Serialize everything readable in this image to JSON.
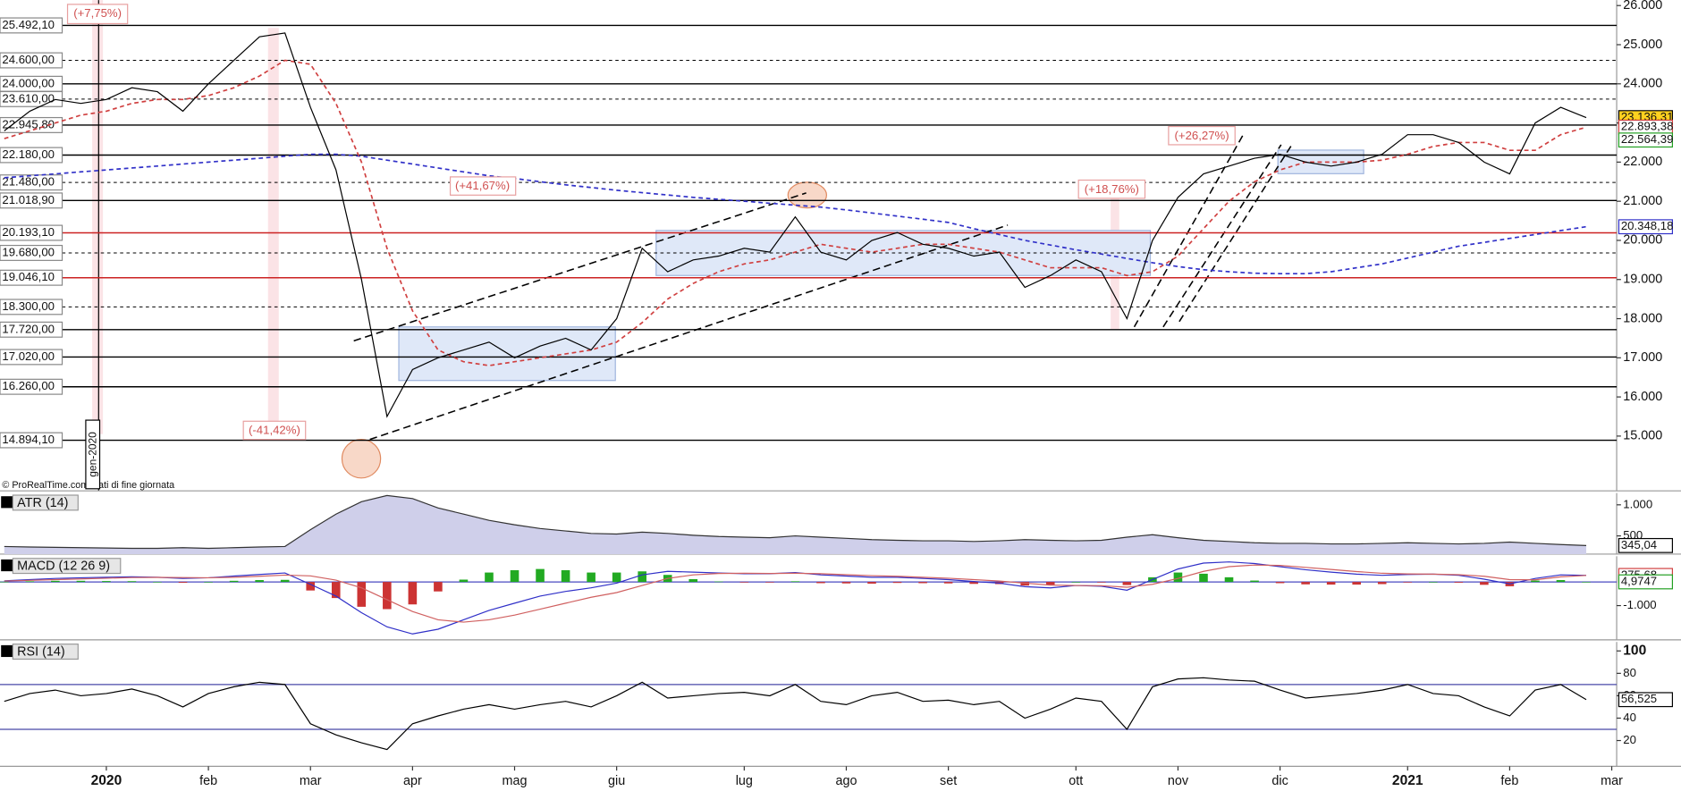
{
  "chart_data": [
    {
      "type": "line",
      "categories": [
        null,
        null,
        null,
        null,
        "2020",
        null,
        null,
        null,
        "feb",
        null,
        null,
        null,
        "mar",
        null,
        null,
        null,
        "apr",
        null,
        null,
        null,
        "mag",
        null,
        null,
        null,
        "giu",
        null,
        null,
        null,
        null,
        "lug",
        null,
        null,
        null,
        "ago",
        null,
        null,
        null,
        "set",
        null,
        null,
        null,
        null,
        "ott",
        null,
        null,
        null,
        "nov",
        null,
        null,
        null,
        "dic",
        null,
        null,
        null,
        null,
        "2021",
        null,
        null,
        null,
        "feb",
        null,
        null,
        null,
        "mar"
      ],
      "ylim": [
        13600,
        26140
      ],
      "yticks": [
        {
          "value": 26000,
          "label": "26.000"
        },
        {
          "value": 25000,
          "label": "25.000"
        },
        {
          "value": 24000,
          "label": "24.000"
        },
        {
          "value": 23000,
          "label": "23.000"
        },
        {
          "value": 22000,
          "label": "22.000"
        },
        {
          "value": 21000,
          "label": "21.000"
        },
        {
          "value": 20000,
          "label": "20.000"
        },
        {
          "value": 19000,
          "label": "19.000"
        },
        {
          "value": 18000,
          "label": "18.000"
        },
        {
          "value": 17000,
          "label": "17.000"
        },
        {
          "value": 16000,
          "label": "16.000"
        },
        {
          "value": 15000,
          "label": "15.000"
        }
      ],
      "levels": [
        {
          "value": 25492.1,
          "label": "25.492,10",
          "color": "#000000",
          "style": "solid"
        },
        {
          "value": 24600,
          "label": "24.600,00",
          "color": "#000000",
          "style": "dashed"
        },
        {
          "value": 24000,
          "label": "24.000,00",
          "color": "#000000",
          "style": "solid"
        },
        {
          "value": 23610,
          "label": "23.610,00",
          "color": "#000000",
          "style": "dashed"
        },
        {
          "value": 22945.8,
          "label": "22.945,80",
          "color": "#000000",
          "style": "solid"
        },
        {
          "value": 22180,
          "label": "22.180,00",
          "color": "#000000",
          "style": "solid"
        },
        {
          "value": 21480,
          "label": "21.480,00",
          "color": "#000000",
          "style": "dashed"
        },
        {
          "value": 21018.9,
          "label": "21.018,90",
          "color": "#000000",
          "style": "solid"
        },
        {
          "value": 20193.1,
          "label": "20.193,10",
          "color": "#cc2222",
          "style": "solid"
        },
        {
          "value": 19680,
          "label": "19.680,00",
          "color": "#000000",
          "style": "dashed"
        },
        {
          "value": 19046.1,
          "label": "19.046,10",
          "color": "#cc2222",
          "style": "solid"
        },
        {
          "value": 18300,
          "label": "18.300,00",
          "color": "#000000",
          "style": "dashed"
        },
        {
          "value": 17720,
          "label": "17.720,00",
          "color": "#000000",
          "style": "solid"
        },
        {
          "value": 17020,
          "label": "17.020,00",
          "color": "#000000",
          "style": "solid"
        },
        {
          "value": 16260,
          "label": "16.260,00",
          "color": "#000000",
          "style": "solid"
        },
        {
          "value": 14894.1,
          "label": "14.894,10",
          "color": "#000000",
          "style": "solid"
        }
      ],
      "series": [
        {
          "color": "#3030c8",
          "style": "dashed",
          "values": [
            21600,
            21650,
            21700,
            21750,
            21800,
            21850,
            21900,
            21950,
            22000,
            22050,
            22100,
            22150,
            22200,
            22200,
            22150,
            22050,
            21950,
            21850,
            21750,
            21650,
            21580,
            21500,
            21420,
            21350,
            21280,
            21220,
            21160,
            21100,
            21050,
            21000,
            20950,
            20900,
            20850,
            20780,
            20700,
            20620,
            20540,
            20460,
            20300,
            20150,
            20000,
            19880,
            19760,
            19650,
            19540,
            19430,
            19330,
            19250,
            19200,
            19160,
            19150,
            19150,
            19200,
            19300,
            19400,
            19550,
            19700,
            19850,
            19950,
            20050,
            20150,
            20250,
            20348,
            null
          ]
        },
        {
          "color": "#d04040",
          "style": "dashed",
          "values": [
            22600,
            22800,
            23000,
            23200,
            23300,
            23500,
            23600,
            23600,
            23700,
            23900,
            24200,
            24600,
            24500,
            23500,
            22000,
            19800,
            18200,
            17200,
            16900,
            16800,
            16900,
            17000,
            17100,
            17200,
            17400,
            17900,
            18500,
            18900,
            19200,
            19400,
            19500,
            19700,
            19900,
            19800,
            19700,
            19800,
            19900,
            19900,
            19800,
            19700,
            19500,
            19300,
            19300,
            19300,
            19100,
            19200,
            19600,
            20300,
            21000,
            21500,
            21800,
            22000,
            22000,
            22000,
            22050,
            22200,
            22400,
            22500,
            22500,
            22300,
            22300,
            22700,
            22893,
            null
          ]
        },
        {
          "color": "#000000",
          "style": "line",
          "values": [
            22800,
            23300,
            23600,
            23500,
            23600,
            23900,
            23800,
            23300,
            24000,
            24600,
            25200,
            25300,
            23400,
            21800,
            19000,
            15500,
            16700,
            17000,
            17200,
            17400,
            17000,
            17300,
            17500,
            17200,
            18000,
            19800,
            19200,
            19500,
            19600,
            19800,
            19700,
            20600,
            19700,
            19500,
            20000,
            20200,
            19900,
            19800,
            19600,
            19700,
            18800,
            19100,
            19500,
            19200,
            18000,
            20000,
            21100,
            21700,
            21900,
            22100,
            22200,
            22000,
            21900,
            22000,
            22200,
            22700,
            22700,
            22500,
            22000,
            21700,
            23000,
            23400,
            23136,
            null
          ]
        }
      ],
      "tags": [
        {
          "value": 23136.31,
          "label": "23.136,31",
          "color": "#000000",
          "background": "#ffd21f"
        },
        {
          "value": 22893.38,
          "label": "22.893,38",
          "color": "#d04040",
          "background": "#ffffff"
        },
        {
          "value": 22564.39,
          "label": "22.564,39",
          "color": "#22a022",
          "background": "#ffffff"
        },
        {
          "value": 20348.18,
          "label": "20.348,18",
          "color": "#3030c8",
          "background": "#ffffff"
        }
      ],
      "annotations": [
        "(+7,75%)",
        "(-41,42%)",
        "(+41,67%)",
        "(+18,76%)",
        "(+26,27%)",
        "© ProRealTime.com Dati di fine giornata",
        "gen-2020"
      ]
    },
    {
      "type": "line",
      "title": "ATR (14)",
      "ylim": [
        207,
        1190
      ],
      "yticks": [
        {
          "value": 1000,
          "label": "1.000"
        },
        500
      ],
      "series": [
        {
          "color": "#333333",
          "style": "area",
          "values": [
            330,
            320,
            315,
            310,
            305,
            300,
            300,
            310,
            300,
            310,
            320,
            330,
            600,
            850,
            1050,
            1150,
            1100,
            950,
            850,
            750,
            680,
            620,
            580,
            540,
            530,
            560,
            540,
            510,
            490,
            480,
            470,
            500,
            480,
            460,
            440,
            430,
            420,
            420,
            410,
            420,
            440,
            430,
            420,
            430,
            480,
            520,
            470,
            430,
            410,
            390,
            380,
            380,
            370,
            370,
            380,
            390,
            380,
            370,
            380,
            400,
            380,
            360,
            345,
            null
          ]
        }
      ],
      "tags": [
        {
          "value": 345.04,
          "label": "345,04",
          "color": "#000000",
          "background": "#ffffff"
        }
      ]
    },
    {
      "type": "line",
      "title": "MACD (12 26 9)",
      "ylim": [
        -2450,
        1090
      ],
      "yticks": [
        {
          "value": -1000,
          "label": "-1.000"
        }
      ],
      "series": [
        {
          "color": "#22aa22",
          "negative_color": "#cc3333",
          "style": "bars",
          "values": [
            10,
            30,
            50,
            50,
            40,
            35,
            5,
            -35,
            0,
            50,
            80,
            90,
            -360,
            -680,
            -1050,
            -1150,
            -950,
            -400,
            100,
            400,
            500,
            550,
            500,
            400,
            400,
            450,
            300,
            120,
            20,
            -20,
            -10,
            30,
            -50,
            -60,
            -70,
            -40,
            -50,
            -60,
            -80,
            -90,
            -150,
            -120,
            0,
            -20,
            -130,
            200,
            400,
            350,
            200,
            60,
            -50,
            -100,
            -110,
            -110,
            -90,
            -20,
            0,
            -30,
            -120,
            -180,
            60,
            80,
            4.9747,
            null
          ]
        },
        {
          "color": "#3030c8",
          "style": "line",
          "values": [
            50,
            100,
            150,
            180,
            200,
            220,
            200,
            150,
            180,
            250,
            320,
            380,
            -100,
            -600,
            -1300,
            -1900,
            -2200,
            -2000,
            -1600,
            -1200,
            -900,
            -600,
            -400,
            -250,
            -50,
            300,
            450,
            420,
            380,
            350,
            350,
            400,
            300,
            250,
            200,
            200,
            150,
            100,
            20,
            -50,
            -200,
            -250,
            -150,
            -180,
            -350,
            100,
            550,
            800,
            850,
            780,
            650,
            520,
            420,
            330,
            280,
            320,
            330,
            280,
            120,
            -80,
            150,
            300,
            280.65,
            null
          ]
        },
        {
          "color": "#d06060",
          "style": "line",
          "values": [
            40,
            70,
            100,
            130,
            160,
            185,
            195,
            185,
            180,
            200,
            240,
            290,
            260,
            80,
            -250,
            -750,
            -1250,
            -1600,
            -1700,
            -1600,
            -1400,
            -1150,
            -900,
            -650,
            -450,
            -150,
            150,
            300,
            360,
            370,
            360,
            370,
            350,
            310,
            270,
            240,
            200,
            160,
            100,
            40,
            -50,
            -130,
            -150,
            -160,
            -220,
            -100,
            150,
            450,
            650,
            720,
            700,
            620,
            530,
            440,
            370,
            340,
            330,
            310,
            240,
            100,
            90,
            220,
            275.68,
            null
          ]
        }
      ],
      "tags": [
        {
          "value": 275.68,
          "label": "275,68",
          "color": "#d04040",
          "background": "#ffffff"
        },
        {
          "value": 4.9747,
          "label": "4,9747",
          "color": "#22a022",
          "background": "#ffffff"
        }
      ]
    },
    {
      "type": "line",
      "title": "RSI (14)",
      "ylim": [
        -3,
        108
      ],
      "yticks": [
        100,
        80,
        60,
        40,
        20
      ],
      "hlines": [
        70,
        30
      ],
      "series": [
        {
          "color": "#000000",
          "style": "line",
          "values": [
            55,
            62,
            65,
            60,
            62,
            66,
            60,
            50,
            62,
            68,
            72,
            70,
            35,
            25,
            18,
            12,
            35,
            42,
            48,
            52,
            48,
            52,
            55,
            50,
            60,
            72,
            58,
            60,
            62,
            63,
            60,
            70,
            55,
            52,
            60,
            63,
            55,
            56,
            52,
            55,
            40,
            48,
            58,
            55,
            30,
            68,
            75,
            76,
            74,
            73,
            65,
            58,
            60,
            62,
            65,
            70,
            62,
            60,
            50,
            42,
            65,
            70,
            56.525,
            null
          ]
        }
      ],
      "tags": [
        {
          "value": 56.525,
          "label": "56,525",
          "color": "#000000",
          "background": "#ffffff"
        }
      ]
    }
  ]
}
